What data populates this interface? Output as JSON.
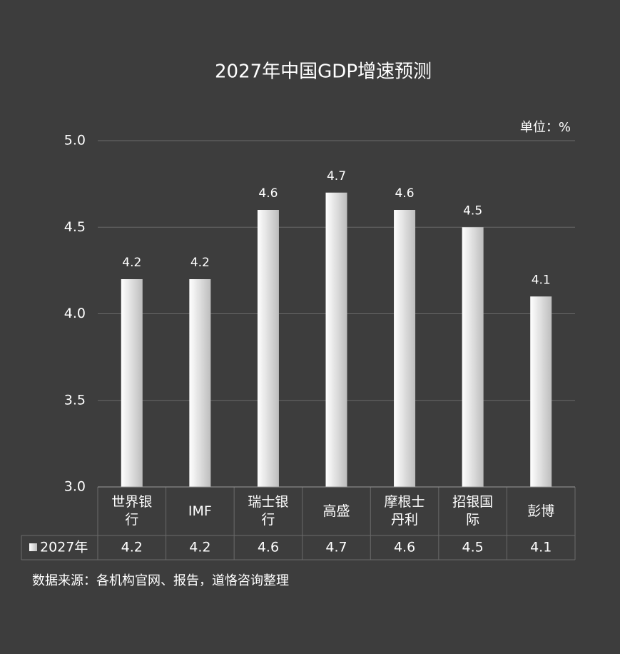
{
  "chart_data": {
    "type": "bar",
    "title": "2027年中国GDP增速预测",
    "unit_label": "单位：%",
    "source": "数据来源：各机构官网、报告，道恪咨询整理",
    "categories": [
      "世界银行",
      "IMF",
      "瑞士银行",
      "高盛",
      "摩根士丹利",
      "招银国际",
      "彭博"
    ],
    "series": [
      {
        "name": "2027年",
        "color": "#ffffff",
        "values": [
          4.2,
          4.2,
          4.6,
          4.7,
          4.6,
          4.5,
          4.1
        ]
      }
    ],
    "ylim": [
      3,
      5
    ],
    "yticks": [
      {
        "value": 3,
        "label": "3.0"
      },
      3.5,
      {
        "value": 4,
        "label": "4.0"
      },
      4.5,
      {
        "value": 5,
        "label": "5.0"
      }
    ],
    "grid": true,
    "data_table": true
  }
}
